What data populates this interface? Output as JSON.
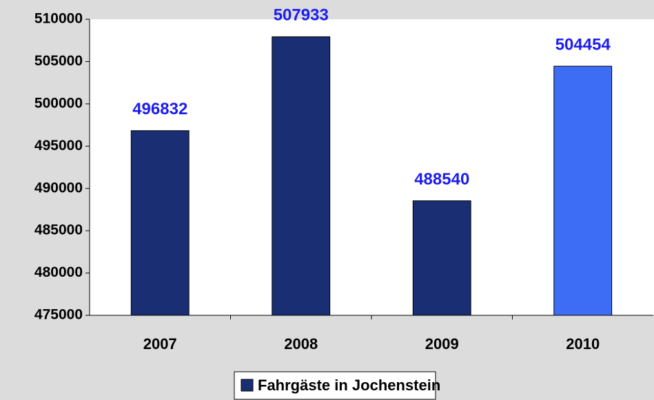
{
  "chart_data": {
    "type": "bar",
    "categories": [
      "2007",
      "2008",
      "2009",
      "2010"
    ],
    "series": [
      {
        "name": "Fahrgäste in Jochenstein",
        "color": "#1a2e73",
        "colors": [
          "#1a2e73",
          "#1a2e73",
          "#1a2e73",
          "#3d6df5"
        ],
        "values": [
          496832,
          507933,
          488540,
          504454
        ]
      }
    ],
    "ylim": [
      475000,
      510000
    ],
    "yticks": [
      475000,
      480000,
      485000,
      490000,
      495000,
      500000,
      505000,
      510000
    ],
    "legend": "bottom",
    "value_label_color": "#1c1cf0"
  }
}
